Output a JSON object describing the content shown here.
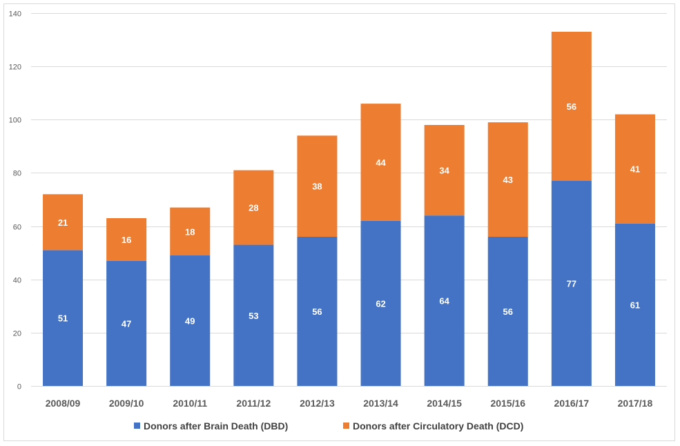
{
  "chart_data": {
    "type": "bar",
    "stacked": true,
    "categories": [
      "2008/09",
      "2009/10",
      "2010/11",
      "2011/12",
      "2012/13",
      "2013/14",
      "2014/15",
      "2015/16",
      "2016/17",
      "2017/18"
    ],
    "series": [
      {
        "name": "Donors after Brain Death (DBD)",
        "color": "#4472c4",
        "values": [
          51,
          47,
          49,
          53,
          56,
          62,
          64,
          56,
          77,
          61
        ]
      },
      {
        "name": "Donors after Circulatory Death (DCD)",
        "color": "#ed7d31",
        "values": [
          21,
          16,
          18,
          28,
          38,
          44,
          34,
          43,
          56,
          41
        ]
      }
    ],
    "title": "",
    "xlabel": "",
    "ylabel": "",
    "ylim": [
      0,
      140
    ],
    "yticks": [
      0,
      20,
      40,
      60,
      80,
      100,
      120,
      140
    ],
    "grid": true,
    "legend": "bottom",
    "gridColor": "#d9d9d9"
  }
}
